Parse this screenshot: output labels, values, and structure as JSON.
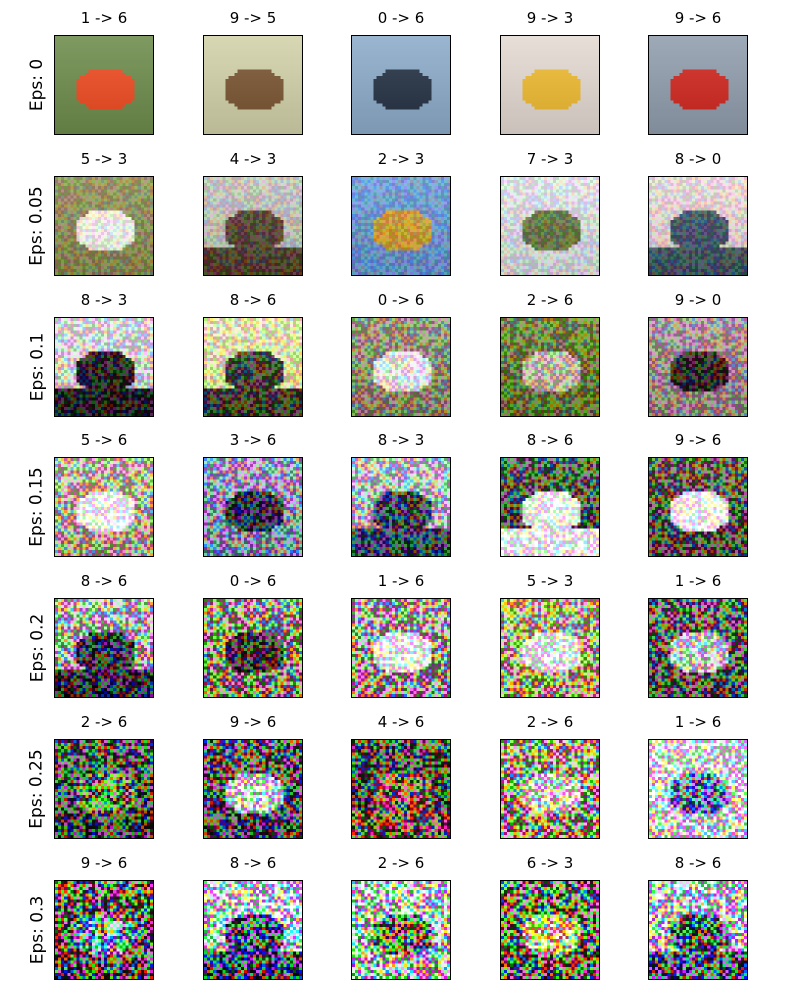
{
  "chart_data": {
    "type": "image-grid",
    "col_count": 5,
    "rows": [
      {
        "label": "Eps: 0",
        "epsilon": 0,
        "cells": [
          {
            "title": "1 -> 6",
            "base": "#6f8b52",
            "accent": "#e2512b",
            "scene": "car"
          },
          {
            "title": "9 -> 5",
            "base": "#c8c8a4",
            "accent": "#7a5a3a",
            "scene": "truck"
          },
          {
            "title": "0 -> 6",
            "base": "#8aa6c0",
            "accent": "#2f3a4a",
            "scene": "plane"
          },
          {
            "title": "9 -> 3",
            "base": "#d8d0c8",
            "accent": "#e2b43a",
            "scene": "truck"
          },
          {
            "title": "9 -> 6",
            "base": "#8e9aa8",
            "accent": "#c8312a",
            "scene": "truck"
          }
        ]
      },
      {
        "label": "Eps: 0.05",
        "epsilon": 0.05,
        "cells": [
          {
            "title": "5 -> 3",
            "base": "#8c8a5a",
            "accent": "#e8e4dc",
            "scene": "dog"
          },
          {
            "title": "4 -> 3",
            "base": "#b8b8b0",
            "accent": "#5a4a3a",
            "scene": "field"
          },
          {
            "title": "2 -> 3",
            "base": "#6b93c8",
            "accent": "#c89a3a",
            "scene": "bird"
          },
          {
            "title": "7 -> 3",
            "base": "#d0d2d8",
            "accent": "#6a7a4a",
            "scene": "horse"
          },
          {
            "title": "8 -> 0",
            "base": "#d8c8c8",
            "accent": "#4a5a6a",
            "scene": "ship"
          }
        ]
      },
      {
        "label": "Eps: 0.1",
        "epsilon": 0.1,
        "cells": [
          {
            "title": "8 -> 3",
            "base": "#c8c8c8",
            "accent": "#2a2a2a",
            "scene": "ship"
          },
          {
            "title": "8 -> 6",
            "base": "#d8d8a0",
            "accent": "#4a4a3a",
            "scene": "ship"
          },
          {
            "title": "0 -> 6",
            "base": "#8a8a70",
            "accent": "#e0e0e0",
            "scene": "plane"
          },
          {
            "title": "2 -> 6",
            "base": "#6a7a3a",
            "accent": "#b8b8a0",
            "scene": "bird"
          },
          {
            "title": "9 -> 0",
            "base": "#9a8a8a",
            "accent": "#3a2a2a",
            "scene": "truck"
          }
        ]
      },
      {
        "label": "Eps: 0.15",
        "epsilon": 0.15,
        "cells": [
          {
            "title": "5 -> 6",
            "base": "#b0a48a",
            "accent": "#ffffff",
            "scene": "dog"
          },
          {
            "title": "3 -> 6",
            "base": "#8a8ab0",
            "accent": "#2a2a4a",
            "scene": "cat"
          },
          {
            "title": "8 -> 3",
            "base": "#a8b0b8",
            "accent": "#3a4a5a",
            "scene": "ship"
          },
          {
            "title": "8 -> 6",
            "base": "#4a5a4a",
            "accent": "#ffffff",
            "scene": "ship"
          },
          {
            "title": "9 -> 6",
            "base": "#5a5a4a",
            "accent": "#ffffff",
            "scene": "truck"
          }
        ]
      },
      {
        "label": "Eps: 0.2",
        "epsilon": 0.2,
        "cells": [
          {
            "title": "8 -> 6",
            "base": "#a8a8a0",
            "accent": "#2a2a3a",
            "scene": "ship"
          },
          {
            "title": "0 -> 6",
            "base": "#8a8a6a",
            "accent": "#3a2a2a",
            "scene": "plane"
          },
          {
            "title": "1 -> 6",
            "base": "#a09090",
            "accent": "#ffffff",
            "scene": "car"
          },
          {
            "title": "5 -> 3",
            "base": "#b0a070",
            "accent": "#ffffff",
            "scene": "dog"
          },
          {
            "title": "1 -> 6",
            "base": "#5a5a4a",
            "accent": "#d0d0d0",
            "scene": "car"
          }
        ]
      },
      {
        "label": "Eps: 0.25",
        "epsilon": 0.25,
        "cells": [
          {
            "title": "2 -> 6",
            "base": "#3a3a3a",
            "accent": "#5a8a3a",
            "scene": "bird"
          },
          {
            "title": "9 -> 6",
            "base": "#4a3a4a",
            "accent": "#e0e0e0",
            "scene": "truck"
          },
          {
            "title": "4 -> 6",
            "base": "#3a3a2a",
            "accent": "#8a4a3a",
            "scene": "field"
          },
          {
            "title": "2 -> 6",
            "base": "#a0a070",
            "accent": "#e0e0d0",
            "scene": "bird"
          },
          {
            "title": "1 -> 6",
            "base": "#e8e8e8",
            "accent": "#4a6ab0",
            "scene": "car"
          }
        ]
      },
      {
        "label": "Eps: 0.3",
        "epsilon": 0.3,
        "cells": [
          {
            "title": "9 -> 6",
            "base": "#4a4a3a",
            "accent": "#6ab0b0",
            "scene": "truck"
          },
          {
            "title": "8 -> 6",
            "base": "#c8d8e8",
            "accent": "#3a3a5a",
            "scene": "ship"
          },
          {
            "title": "2 -> 6",
            "base": "#c8c8c8",
            "accent": "#5a6a3a",
            "scene": "bird"
          },
          {
            "title": "6 -> 3",
            "base": "#5a5a3a",
            "accent": "#e0e070",
            "scene": "frog"
          },
          {
            "title": "8 -> 6",
            "base": "#c8d0e0",
            "accent": "#3a4a6a",
            "scene": "ship"
          }
        ]
      }
    ]
  }
}
